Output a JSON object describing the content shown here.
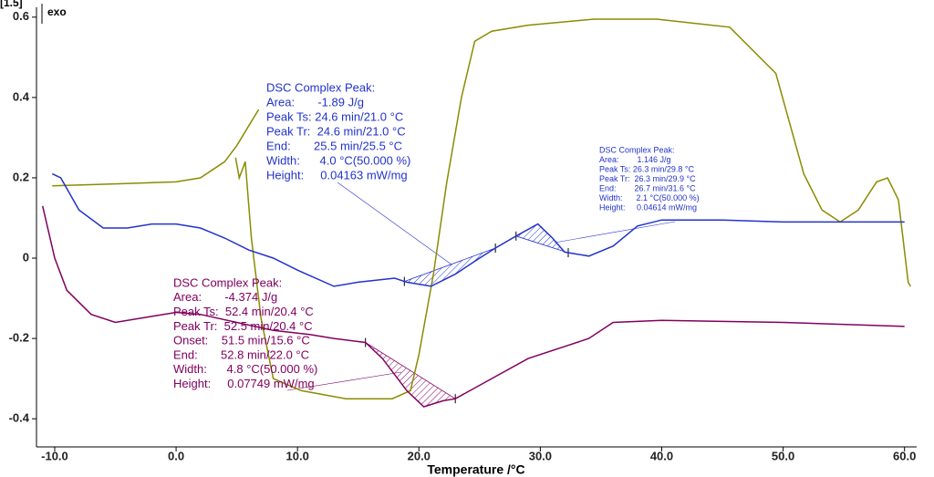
{
  "chart_data": {
    "type": "line",
    "xlabel": "Temperature /°C",
    "corner_labels": [
      "[1.5]",
      "exo"
    ],
    "xlim": [
      -11.5,
      61
    ],
    "ylim": [
      -0.47,
      0.62
    ],
    "xticks": [
      {
        "value": -10,
        "label": "-10.0"
      },
      {
        "value": 0,
        "label": "0.0"
      },
      {
        "value": 10,
        "label": "10.0"
      },
      {
        "value": 20,
        "label": "20.0"
      },
      {
        "value": 30,
        "label": "30.0"
      },
      {
        "value": 40,
        "label": "40.0"
      },
      {
        "value": 50,
        "label": "50.0"
      },
      {
        "value": 60,
        "label": "60.0"
      }
    ],
    "yticks": [
      0.6,
      0.4,
      0.2,
      0,
      -0.2,
      -0.4
    ],
    "series": [
      {
        "color": "#8b8b00",
        "x": [
          -10.2,
          -5,
          0,
          2,
          4,
          5,
          6,
          6.8,
          null,
          4.9,
          5.2,
          5.7,
          6.2,
          7,
          8,
          10.3,
          14,
          17.8,
          19.3,
          20,
          21.2,
          22.3,
          23.5,
          24.6,
          26,
          29,
          34.4,
          39.6,
          45.6,
          49.4,
          51.7,
          53.2,
          54.7,
          56.2,
          57.7,
          58.6,
          59.5,
          60.3,
          60.5
        ],
        "values": [
          0.18,
          0.185,
          0.19,
          0.2,
          0.24,
          0.28,
          0.33,
          0.37,
          null,
          0.25,
          0.2,
          0.24,
          0.05,
          -0.15,
          -0.3,
          -0.33,
          -0.35,
          -0.35,
          -0.33,
          -0.24,
          -0.04,
          0.19,
          0.4,
          0.54,
          0.565,
          0.58,
          0.595,
          0.595,
          0.575,
          0.46,
          0.21,
          0.12,
          0.09,
          0.12,
          0.19,
          0.2,
          0.145,
          -0.06,
          -0.07
        ]
      },
      {
        "color": "#2233cc",
        "x": [
          -10.2,
          -9.5,
          -8,
          -6,
          -4,
          -2,
          0,
          2,
          4,
          6,
          8,
          10,
          13,
          15,
          18,
          19,
          21,
          23,
          25,
          26.3,
          28,
          29.8,
          31,
          32,
          34,
          36,
          38,
          40,
          45,
          50,
          55,
          60
        ],
        "values": [
          0.21,
          0.2,
          0.12,
          0.075,
          0.075,
          0.085,
          0.085,
          0.075,
          0.05,
          0.02,
          0,
          -0.03,
          -0.07,
          -0.06,
          -0.05,
          -0.06,
          -0.07,
          -0.04,
          0,
          0.025,
          0.055,
          0.085,
          0.05,
          0.015,
          0.005,
          0.03,
          0.08,
          0.095,
          0.095,
          0.09,
          0.09,
          0.09
        ]
      },
      {
        "color": "#800060",
        "x": [
          -11,
          -10,
          -9,
          -7,
          -5,
          -2,
          0,
          2,
          5,
          8,
          11,
          13,
          15.6,
          17,
          19,
          20.4,
          22,
          23,
          26,
          29,
          32,
          34,
          36,
          40,
          50,
          60
        ],
        "values": [
          0.13,
          0,
          -0.08,
          -0.14,
          -0.16,
          -0.145,
          -0.135,
          -0.14,
          -0.16,
          -0.18,
          -0.19,
          -0.2,
          -0.21,
          -0.25,
          -0.33,
          -0.37,
          -0.355,
          -0.35,
          -0.3,
          -0.25,
          -0.22,
          -0.2,
          -0.16,
          -0.155,
          -0.16,
          -0.17
        ]
      }
    ],
    "annotations": [
      {
        "lines": [
          "DSC Complex Peak:",
          "Area:       -1.89 J/g",
          "Peak Ts: 24.6 min/21.0 °C",
          "Peak Tr:  24.6 min/21.0 °C",
          "End:       25.5 min/25.5 °C",
          "Width:      4.0 °C(50.000 %)",
          "Height:     0.04163 mW/mg"
        ]
      },
      {
        "lines": [
          "DSC Complex Peak:",
          "Area:        1.146 J/g",
          "Peak Ts: 26.3 min/29.8 °C",
          "Peak Tr:  26.3 min/29.9 °C",
          "End:        26.7 min/31.6 °C",
          "Width:      2.1 °C(50.000 %)",
          "Height:     0.04614 mW/mg"
        ]
      },
      {
        "lines": [
          "DSC Complex Peak:",
          "Area:       -4.374 J/g",
          "Peak Ts:  52.4 min/20.4 °C",
          "Peak Tr:  52.5 min/20.4 °C",
          "Onset:    51.5 min/15.6 °C",
          "End:       52.8 min/22.0 °C",
          "Width:      4.8 °C(50.000 %)",
          "Height:     0.07749 mW/mg"
        ]
      }
    ]
  }
}
